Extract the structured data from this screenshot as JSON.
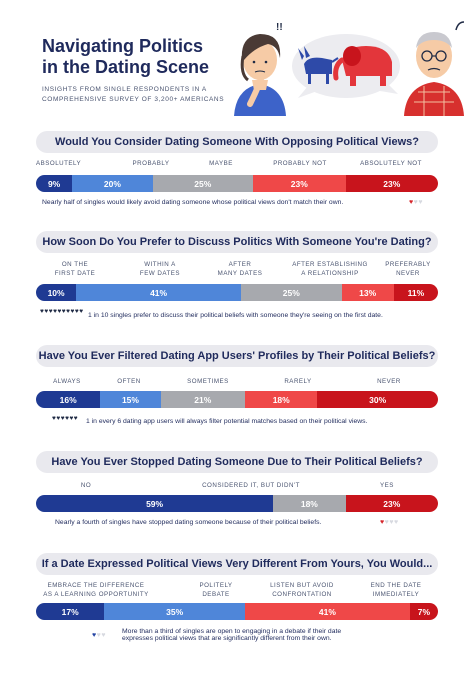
{
  "header": {
    "title_line1": "Navigating Politics",
    "title_line2": "in the Dating Scene",
    "subtitle_line1": "INSIGHTS FROM SINGLE RESPONDENTS IN A",
    "subtitle_line2": "COMPREHENSIVE SURVEY OF 3,200+ AMERICANS"
  },
  "colors": {
    "navy": "#1f3a93",
    "blue": "#4f86d9",
    "gray": "#a7a9ae",
    "red": "#ef4848",
    "darkred": "#c8141c"
  },
  "sections": [
    {
      "question": "Would You Consider Dating Someone With Opposing Political Views?",
      "labels": [
        "ABSOLUTELY",
        "PROBABLY",
        "MAYBE",
        "PROBABLY NOT",
        "ABSOLUTELY NOT"
      ],
      "values": [
        "9%",
        "20%",
        "25%",
        "23%",
        "23%"
      ],
      "percents": [
        9,
        20,
        25,
        23,
        23
      ],
      "colors": [
        "navy",
        "blue",
        "gray",
        "red",
        "darkred"
      ],
      "note": "Nearly half of singles would likely avoid dating someone whose political views don't match their own.",
      "hearts_on": 1,
      "hearts_total": 3
    },
    {
      "question": "How Soon Do You Prefer to Discuss Politics With Someone You're Dating?",
      "labels": [
        [
          "ON THE",
          "FIRST DATE"
        ],
        [
          "WITHIN A",
          "FEW DATES"
        ],
        [
          "AFTER",
          "MANY DATES"
        ],
        [
          "AFTER ESTABLISHING",
          "A RELATIONSHIP"
        ],
        [
          "PREFERABLY",
          "NEVER"
        ]
      ],
      "values": [
        "10%",
        "41%",
        "25%",
        "13%",
        "11%"
      ],
      "percents": [
        10,
        41,
        25,
        13,
        11
      ],
      "colors": [
        "navy",
        "blue",
        "gray",
        "red",
        "darkred"
      ],
      "note": "1 in 10 singles prefer to discuss their political beliefs with someone they're seeing on the first date.",
      "hearts_on": 1,
      "hearts_total": 10
    },
    {
      "question": "Have You Ever Filtered Dating App Users' Profiles by Their Political Beliefs?",
      "labels": [
        "ALWAYS",
        "OFTEN",
        "SOMETIMES",
        "RARELY",
        "NEVER"
      ],
      "values": [
        "16%",
        "15%",
        "21%",
        "18%",
        "30%"
      ],
      "percents": [
        16,
        15,
        21,
        18,
        30
      ],
      "colors": [
        "navy",
        "blue",
        "gray",
        "red",
        "darkred"
      ],
      "note": "1 in every 6 dating app users will always filter potential matches based on their political views.",
      "hearts_on": 1,
      "hearts_total": 6
    },
    {
      "question": "Have You Ever Stopped Dating Someone Due to Their Political Beliefs?",
      "labels": [
        "NO",
        "CONSIDERED IT, BUT DIDN'T",
        "YES"
      ],
      "values": [
        "59%",
        "18%",
        "23%"
      ],
      "percents": [
        59,
        18,
        23
      ],
      "colors": [
        "navy",
        "gray",
        "darkred"
      ],
      "note": "Nearly a fourth of singles have stopped dating someone because of their political beliefs.",
      "hearts_on": 1,
      "hearts_total": 4
    },
    {
      "question": "If a Date Expressed Political Views Very Different From Yours, You Would...",
      "labels": [
        [
          "EMBRACE THE DIFFERENCE",
          "AS A LEARNING OPPORTUNITY"
        ],
        [
          "POLITELY",
          "DEBATE"
        ],
        [
          "LISTEN BUT AVOID",
          "CONFRONTATION"
        ],
        [
          "END THE DATE",
          "IMMEDIATELY"
        ]
      ],
      "values": [
        "17%",
        "35%",
        "41%",
        "7%"
      ],
      "percents": [
        17,
        35,
        41,
        7
      ],
      "colors": [
        "navy",
        "blue",
        "red",
        "darkred"
      ],
      "note_line1": "More than a third of singles are open to engaging in a debate if their date",
      "note_line2": "expresses political views that are significantly different from their own.",
      "hearts_on": 1,
      "hearts_total": 3
    }
  ]
}
